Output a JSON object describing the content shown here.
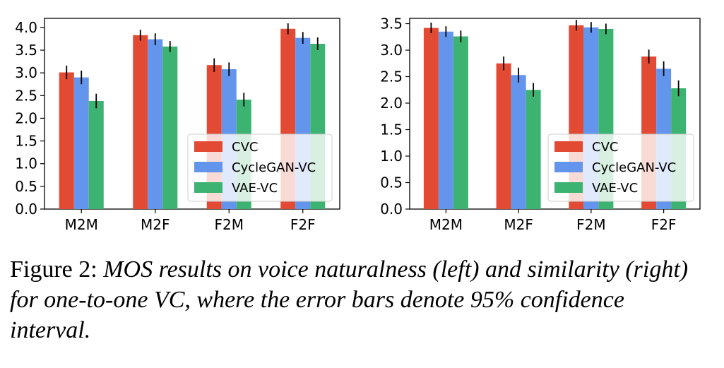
{
  "chart_data": [
    {
      "type": "bar",
      "categories": [
        "M2M",
        "M2F",
        "F2M",
        "F2F"
      ],
      "series": [
        {
          "name": "CVC",
          "color": "#e24a33",
          "values": [
            3.01,
            3.83,
            3.17,
            3.97
          ],
          "err": [
            0.15,
            0.12,
            0.15,
            0.12
          ]
        },
        {
          "name": "CycleGAN-VC",
          "color": "#6495ed",
          "values": [
            2.9,
            3.74,
            3.08,
            3.77
          ],
          "err": [
            0.15,
            0.13,
            0.15,
            0.13
          ]
        },
        {
          "name": "VAE-VC",
          "color": "#3cb371",
          "values": [
            2.38,
            3.58,
            2.41,
            3.64
          ],
          "err": [
            0.16,
            0.12,
            0.15,
            0.14
          ]
        }
      ],
      "yticks": [
        "0.0",
        "0.5",
        "1.0",
        "1.5",
        "2.0",
        "2.5",
        "3.0",
        "3.5",
        "4.0"
      ],
      "ylim": [
        0,
        4.2
      ],
      "grid": false,
      "legend": "lower-right"
    },
    {
      "type": "bar",
      "categories": [
        "M2M",
        "M2F",
        "F2M",
        "F2F"
      ],
      "series": [
        {
          "name": "CVC",
          "color": "#e24a33",
          "values": [
            3.42,
            2.75,
            3.47,
            2.88
          ],
          "err": [
            0.1,
            0.13,
            0.1,
            0.13
          ]
        },
        {
          "name": "CycleGAN-VC",
          "color": "#6495ed",
          "values": [
            3.35,
            2.53,
            3.43,
            2.65
          ],
          "err": [
            0.1,
            0.14,
            0.1,
            0.14
          ]
        },
        {
          "name": "VAE-VC",
          "color": "#3cb371",
          "values": [
            3.26,
            2.25,
            3.4,
            2.28
          ],
          "err": [
            0.11,
            0.13,
            0.1,
            0.15
          ]
        }
      ],
      "yticks": [
        "0.0",
        "0.5",
        "1.0",
        "1.5",
        "2.0",
        "2.5",
        "3.0",
        "3.5"
      ],
      "ylim": [
        0,
        3.6
      ],
      "grid": false,
      "legend": "lower-right"
    }
  ],
  "caption": {
    "lead": "Figure 2: ",
    "body": "MOS results on voice naturalness (left) and similarity (right) for one-to-one VC, where the error bars denote 95% confidence interval."
  }
}
